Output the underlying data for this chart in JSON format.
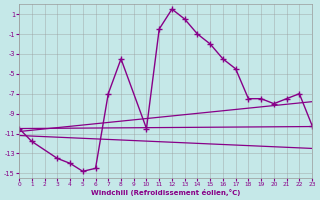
{
  "xlabel": "Windchill (Refroidissement éolien,°C)",
  "xlim": [
    0,
    23
  ],
  "ylim": [
    -15.5,
    2.0
  ],
  "yticks": [
    1,
    -1,
    -3,
    -5,
    -7,
    -9,
    -11,
    -13,
    -15
  ],
  "xticks": [
    0,
    1,
    2,
    3,
    4,
    5,
    6,
    7,
    8,
    9,
    10,
    11,
    12,
    13,
    14,
    15,
    16,
    17,
    18,
    19,
    20,
    21,
    22,
    23
  ],
  "bg_color": "#c5e8e8",
  "line_color": "#880088",
  "grid_color": "#999999",
  "line1_x": [
    0,
    1,
    3,
    4,
    5,
    6,
    7,
    8,
    10,
    11,
    12,
    13,
    14,
    15,
    16,
    17,
    18,
    19,
    20,
    21,
    22,
    23
  ],
  "line1_y": [
    -10.5,
    -11.8,
    -13.5,
    -14.0,
    -14.8,
    -14.5,
    -7.0,
    -3.5,
    -10.5,
    -0.5,
    1.5,
    0.5,
    -1.0,
    -2.0,
    -3.5,
    -4.5,
    -7.5,
    -7.5,
    -8.0,
    -7.5,
    -7.0,
    -10.2
  ],
  "line2_x": [
    0,
    23
  ],
  "line2_y": [
    -10.5,
    -10.3
  ],
  "line3_x": [
    0,
    23
  ],
  "line3_y": [
    -10.8,
    -7.8
  ],
  "line4_x": [
    0,
    23
  ],
  "line4_y": [
    -11.2,
    -12.5
  ]
}
